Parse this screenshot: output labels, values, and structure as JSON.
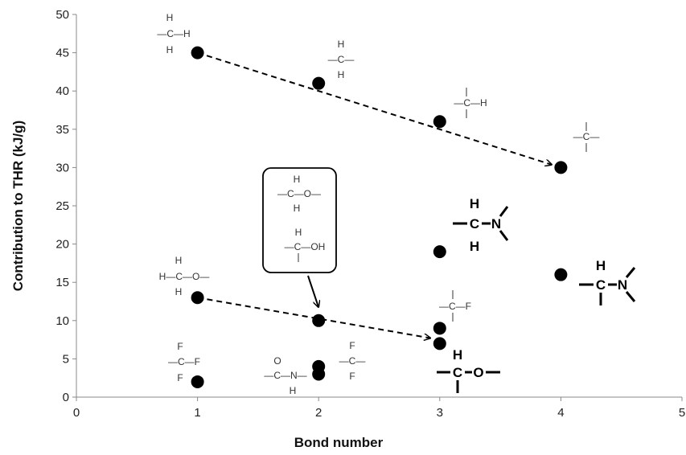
{
  "chart_data": {
    "type": "scatter",
    "title": "",
    "xlabel": "Bond number",
    "ylabel": "Contribution to THR (kJ/g)",
    "xlim": [
      0,
      5
    ],
    "ylim": [
      0,
      50
    ],
    "xticks": [
      0,
      1,
      2,
      3,
      4,
      5
    ],
    "yticks": [
      0,
      5,
      10,
      15,
      20,
      25,
      30,
      35,
      40,
      45,
      50
    ],
    "grid": false,
    "legend": "none",
    "marker_color": "#000000",
    "series": [
      {
        "points": [
          {
            "x": 1,
            "y": 45
          },
          {
            "x": 2,
            "y": 41
          },
          {
            "x": 3,
            "y": 36
          },
          {
            "x": 4,
            "y": 30
          },
          {
            "x": 1,
            "y": 13
          },
          {
            "x": 2,
            "y": 10
          },
          {
            "x": 3,
            "y": 9
          },
          {
            "x": 3,
            "y": 7
          },
          {
            "x": 1,
            "y": 2
          },
          {
            "x": 2,
            "y": 4
          },
          {
            "x": 2,
            "y": 3
          },
          {
            "x": 3,
            "y": 19
          },
          {
            "x": 4,
            "y": 16
          }
        ]
      }
    ],
    "trend_arrows": [
      {
        "from": {
          "x": 1,
          "y": 45
        },
        "to": {
          "x": 4,
          "y": 30
        }
      },
      {
        "from": {
          "x": 1,
          "y": 13
        },
        "to": {
          "x": 3,
          "y": 7.5
        }
      }
    ],
    "group_labels": {
      "ch3": {
        "top": "H",
        "left": "—C—H",
        "bottom": "H"
      },
      "ch2": {
        "top": "H",
        "middle": "—C—",
        "bottom": "H"
      },
      "ch": {
        "middle": "—C—H"
      },
      "c": {
        "middle": "—C—"
      },
      "och3": {
        "top": "H",
        "middle": "H—C—O—",
        "bottom": "H"
      },
      "box_ch2o": {
        "top": "H",
        "middle": "—C—O—",
        "bottom": "H"
      },
      "box_choh": {
        "top": "H",
        "middle": "—C—OH"
      },
      "cf3": {
        "top": "F",
        "middle": "—C—F",
        "bottom": "F"
      },
      "amide": {
        "top": "O",
        "middle": "—C—N—",
        "bottom": "H"
      },
      "cf2": {
        "top": "F",
        "middle": "—C—",
        "bottom": "F"
      },
      "chf": {
        "middle": "—C—F"
      },
      "ch2n": {
        "top": "H",
        "middle": "C",
        "right": "N",
        "bottom": "H"
      },
      "chn": {
        "top": "H",
        "middle": "C",
        "right": "N"
      },
      "cho": {
        "top": "H",
        "middle": "C",
        "right": "O"
      }
    }
  }
}
